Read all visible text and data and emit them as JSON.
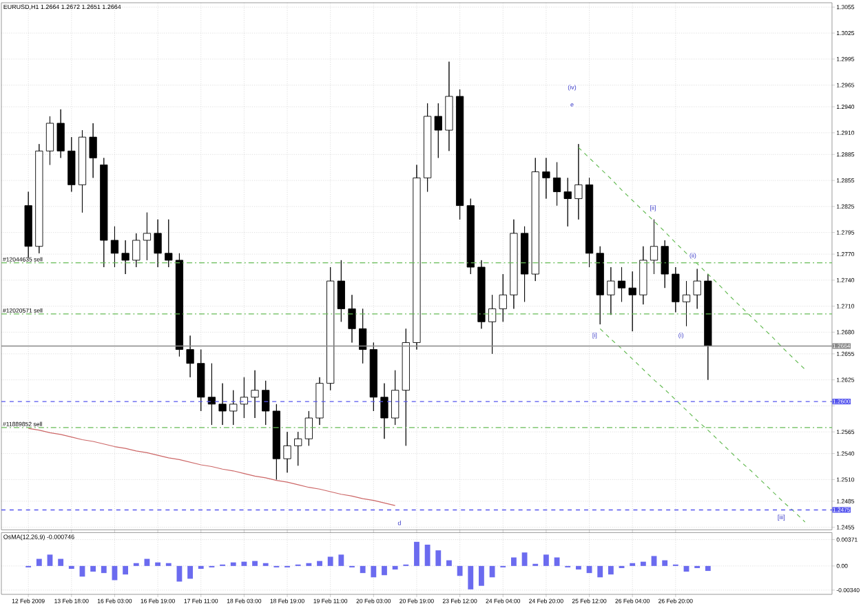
{
  "chart_data": [
    {
      "type": "candlestick",
      "title": "EURUSD,H1  1.2664 1.2672 1.2651 1.2664",
      "color": "#000000",
      "categories": [
        null,
        null,
        null,
        null,
        null,
        null,
        null,
        null,
        null,
        null,
        null,
        null,
        null,
        null,
        null,
        null,
        null,
        null,
        null,
        null,
        null,
        null,
        null,
        null,
        null,
        null,
        null,
        null,
        null,
        null,
        null,
        null,
        null,
        null,
        null,
        null,
        null,
        null,
        null,
        null,
        null,
        null,
        null,
        null,
        null,
        null,
        null,
        null,
        null,
        null,
        null,
        null,
        null,
        null,
        null,
        null,
        null,
        null,
        null,
        null,
        null,
        null,
        null,
        null,
        null,
        null,
        null,
        null,
        null,
        null,
        null,
        null,
        null,
        null,
        null
      ],
      "ohlc": [
        [
          1.2826,
          1.2842,
          1.2766,
          1.2779
        ],
        [
          1.2779,
          1.2897,
          1.2771,
          1.2889
        ],
        [
          1.2889,
          1.2929,
          1.2873,
          1.2921
        ],
        [
          1.2921,
          1.2937,
          1.2881,
          1.2889
        ],
        [
          1.2889,
          1.2905,
          1.2842,
          1.285
        ],
        [
          1.285,
          1.2913,
          1.2818,
          1.2905
        ],
        [
          1.2905,
          1.2921,
          1.2858,
          1.2881
        ],
        [
          1.2873,
          1.2881,
          1.2755,
          1.2786
        ],
        [
          1.2786,
          1.2802,
          1.2755,
          1.2771
        ],
        [
          1.2771,
          1.2786,
          1.2747,
          1.2763
        ],
        [
          1.2763,
          1.2794,
          1.2755,
          1.2786
        ],
        [
          1.2786,
          1.2818,
          1.2763,
          1.2794
        ],
        [
          1.2794,
          1.281,
          1.2755,
          1.2771
        ],
        [
          1.2771,
          1.281,
          1.2755,
          1.2763
        ],
        [
          1.2763,
          1.2771,
          1.2652,
          1.266
        ],
        [
          1.266,
          1.2676,
          1.2628,
          1.2644
        ],
        [
          1.2644,
          1.266,
          1.2589,
          1.2605
        ],
        [
          1.2605,
          1.2644,
          1.2573,
          1.2597
        ],
        [
          1.2597,
          1.2621,
          1.2573,
          1.2589
        ],
        [
          1.2589,
          1.2613,
          1.2573,
          1.2597
        ],
        [
          1.2597,
          1.2628,
          1.2581,
          1.2605
        ],
        [
          1.2605,
          1.2636,
          1.2581,
          1.2613
        ],
        [
          1.2613,
          1.2624,
          1.2573,
          1.2589
        ],
        [
          1.2589,
          1.2597,
          1.251,
          1.2534
        ],
        [
          1.2534,
          1.2565,
          1.2518,
          1.2549
        ],
        [
          1.2549,
          1.2565,
          1.2526,
          1.2557
        ],
        [
          1.2557,
          1.2589,
          1.2549,
          1.2581
        ],
        [
          1.2581,
          1.2628,
          1.2573,
          1.2621
        ],
        [
          1.2621,
          1.2755,
          1.2613,
          1.2739
        ],
        [
          1.2739,
          1.2763,
          1.2692,
          1.2707
        ],
        [
          1.2707,
          1.2723,
          1.2668,
          1.2684
        ],
        [
          1.2684,
          1.2707,
          1.2644,
          1.266
        ],
        [
          1.266,
          1.2668,
          1.2589,
          1.2605
        ],
        [
          1.2605,
          1.2621,
          1.2557,
          1.2581
        ],
        [
          1.2581,
          1.2636,
          1.2573,
          1.2613
        ],
        [
          1.2613,
          1.2684,
          1.2549,
          1.2668
        ],
        [
          1.2668,
          1.2873,
          1.266,
          1.2858
        ],
        [
          1.2858,
          1.2944,
          1.2842,
          1.2929
        ],
        [
          1.2929,
          1.2944,
          1.2881,
          1.2913
        ],
        [
          1.2913,
          1.2992,
          1.2889,
          1.2952
        ],
        [
          1.2952,
          1.296,
          1.281,
          1.2826
        ],
        [
          1.2826,
          1.2834,
          1.2747,
          1.2755
        ],
        [
          1.2755,
          1.2763,
          1.2684,
          1.2692
        ],
        [
          1.2692,
          1.2723,
          1.2655,
          1.2707
        ],
        [
          1.2707,
          1.2747,
          1.2692,
          1.2723
        ],
        [
          1.2723,
          1.281,
          1.2707,
          1.2794
        ],
        [
          1.2794,
          1.2802,
          1.2715,
          1.2747
        ],
        [
          1.2747,
          1.2881,
          1.2739,
          1.2865
        ],
        [
          1.2865,
          1.2881,
          1.2834,
          1.2858
        ],
        [
          1.2858,
          1.2876,
          1.2826,
          1.2842
        ],
        [
          1.2842,
          1.2858,
          1.2802,
          1.2834
        ],
        [
          1.2834,
          1.2897,
          1.281,
          1.285
        ],
        [
          1.285,
          1.2858,
          1.2755,
          1.2771
        ],
        [
          1.2771,
          1.2779,
          1.2689,
          1.2723
        ],
        [
          1.2723,
          1.2755,
          1.27,
          1.2739
        ],
        [
          1.2739,
          1.2755,
          1.2715,
          1.2731
        ],
        [
          1.2731,
          1.275,
          1.2681,
          1.2723
        ],
        [
          1.2723,
          1.2779,
          1.2712,
          1.2763
        ],
        [
          1.2763,
          1.281,
          1.2747,
          1.2779
        ],
        [
          1.2779,
          1.2786,
          1.2731,
          1.2747
        ],
        [
          1.2747,
          1.2755,
          1.2703,
          1.2715
        ],
        [
          1.2715,
          1.2739,
          1.2687,
          1.2723
        ],
        [
          1.2723,
          1.2753,
          1.2707,
          1.2739
        ],
        [
          1.2739,
          1.2747,
          1.2625,
          1.2664
        ],
        null,
        null,
        null,
        null,
        null,
        null,
        null,
        null,
        null,
        null,
        null
      ],
      "series": [
        {
          "type": "line",
          "color": "#cc6666",
          "line_style": "solid",
          "values": [
            1.2569,
            1.2567,
            1.2564,
            1.2562,
            1.2559,
            1.2556,
            1.2554,
            1.2551,
            1.2548,
            1.2546,
            1.2543,
            1.2541,
            1.2538,
            1.2535,
            1.2533,
            1.253,
            1.2527,
            1.2525,
            1.2522,
            1.252,
            1.2517,
            1.2514,
            1.2512,
            1.2509,
            1.2507,
            1.2504,
            1.2501,
            1.2499,
            1.2496,
            1.2493,
            1.2491,
            1.2488,
            1.2486,
            1.2483,
            1.248,
            null,
            null,
            null,
            null,
            null,
            null,
            null,
            null,
            null,
            null,
            null,
            null,
            null,
            null,
            null,
            null,
            null,
            null,
            null,
            null,
            null,
            null,
            null,
            null,
            null,
            null,
            null,
            null,
            null,
            null,
            null,
            null,
            null,
            null,
            null,
            null,
            null,
            null,
            null,
            null
          ]
        },
        {
          "type": "line",
          "color": "#66bb55",
          "line_style": "dashed",
          "values": [
            null,
            null,
            null,
            null,
            null,
            null,
            null,
            null,
            null,
            null,
            null,
            null,
            null,
            null,
            null,
            null,
            null,
            null,
            null,
            null,
            null,
            null,
            null,
            null,
            null,
            null,
            null,
            null,
            null,
            null,
            null,
            null,
            null,
            null,
            null,
            null,
            null,
            null,
            null,
            null,
            null,
            null,
            null,
            null,
            null,
            null,
            null,
            null,
            null,
            null,
            null,
            1.2893,
            1.2881,
            1.2869,
            1.2857,
            1.2844,
            1.2832,
            1.282,
            1.2808,
            1.2796,
            1.2783,
            1.2771,
            1.2759,
            1.2747,
            1.2735,
            1.2722,
            1.271,
            1.2698,
            1.2686,
            1.2674,
            1.2661,
            1.2649,
            1.2637,
            null,
            null
          ]
        },
        {
          "type": "line",
          "color": "#66bb55",
          "line_style": "dashed",
          "values": [
            null,
            null,
            null,
            null,
            null,
            null,
            null,
            null,
            null,
            null,
            null,
            null,
            null,
            null,
            null,
            null,
            null,
            null,
            null,
            null,
            null,
            null,
            null,
            null,
            null,
            null,
            null,
            null,
            null,
            null,
            null,
            null,
            null,
            null,
            null,
            null,
            null,
            null,
            null,
            null,
            null,
            null,
            null,
            null,
            null,
            null,
            null,
            null,
            null,
            null,
            null,
            null,
            null,
            1.2684,
            1.2672,
            1.2661,
            1.2649,
            1.2637,
            1.2625,
            1.2614,
            1.2602,
            1.259,
            1.2578,
            1.2567,
            1.2555,
            1.2543,
            1.2531,
            1.252,
            1.2508,
            1.2496,
            1.2484,
            1.2473,
            1.2461,
            null,
            null
          ]
        }
      ],
      "ref_lines": [
        {
          "axis": "y",
          "value": 1.276,
          "label": "#12044635 sell",
          "color": "#66bb55",
          "line_style": "dashdot"
        },
        {
          "axis": "y",
          "value": 1.2701,
          "label": "#12020571 sell",
          "color": "#66bb55",
          "line_style": "dashdot"
        },
        {
          "axis": "y",
          "value": 1.257,
          "label": "#11889852 sell",
          "color": "#66bb55",
          "line_style": "dashdot"
        },
        {
          "axis": "y",
          "value": 1.26,
          "label": "1.2600",
          "color": "#5555ee",
          "line_style": "dashed"
        },
        {
          "axis": "y",
          "value": 1.2475,
          "label": "1.2475",
          "color": "#5555ee",
          "line_style": "dashed"
        },
        {
          "axis": "y",
          "value": 1.2664,
          "label": "1.2664",
          "color": "#888888",
          "line_style": "solid"
        }
      ],
      "annotations": [
        "(iv)",
        "e",
        "[i]",
        "[ii]",
        "(i)",
        "(ii)",
        "[iii]",
        "d"
      ],
      "ylim": [
        1.2452,
        1.306
      ],
      "yticks": [
        {
          "value": 1.3055,
          "label": "1.3055"
        },
        {
          "value": 1.3025,
          "label": "1.3025"
        },
        {
          "value": 1.2995,
          "label": "1.2995"
        },
        {
          "value": 1.2965,
          "label": "1.2965"
        },
        {
          "value": 1.294,
          "label": "1.2940"
        },
        {
          "value": 1.291,
          "label": "1.2910"
        },
        {
          "value": 1.2885,
          "label": "1.2885"
        },
        {
          "value": 1.2855,
          "label": "1.2855"
        },
        {
          "value": 1.2825,
          "label": "1.2825"
        },
        {
          "value": 1.2795,
          "label": "1.2795"
        },
        {
          "value": 1.277,
          "label": "1.2770"
        },
        {
          "value": 1.274,
          "label": "1.2740"
        },
        {
          "value": 1.271,
          "label": "1.2710"
        },
        {
          "value": 1.268,
          "label": "1.2680"
        },
        {
          "value": 1.2655,
          "label": "1.2655"
        },
        {
          "value": 1.2625,
          "label": "1.2625"
        },
        {
          "value": 1.2595,
          "label": null
        },
        {
          "value": 1.2565,
          "label": "1.2565"
        },
        {
          "value": 1.254,
          "label": "1.2540"
        },
        {
          "value": 1.251,
          "label": "1.2510"
        },
        {
          "value": 1.2485,
          "label": "1.2485"
        },
        {
          "value": 1.2455,
          "label": "1.2455"
        }
      ],
      "tick_labels": "y",
      "grid": true
    },
    {
      "type": "bar",
      "title": "OsMA(12,26,9) -0.000746",
      "color": "#6b6bef",
      "categories": [
        "12 Feb 2009",
        null,
        null,
        null,
        "13 Feb 18:00",
        null,
        null,
        null,
        "16 Feb 03:00",
        null,
        null,
        null,
        "16 Feb 19:00",
        null,
        null,
        null,
        "17 Feb 11:00",
        null,
        null,
        null,
        "18 Feb 03:00",
        null,
        null,
        null,
        "18 Feb 19:00",
        null,
        null,
        null,
        "19 Feb 11:00",
        null,
        null,
        null,
        "20 Feb 03:00",
        null,
        null,
        null,
        "20 Feb 19:00",
        null,
        null,
        null,
        "23 Feb 12:00",
        null,
        null,
        null,
        "24 Feb 04:00",
        null,
        null,
        null,
        "24 Feb 20:00",
        null,
        null,
        null,
        "25 Feb 12:00",
        null,
        null,
        null,
        "26 Feb 04:00",
        null,
        null,
        null,
        "26 Feb 20:00",
        null,
        null,
        null,
        null,
        null,
        null,
        null,
        null,
        null,
        null,
        null,
        null,
        null,
        null
      ],
      "values": [
        -0.0002,
        0.001,
        0.0016,
        0.001,
        -0.0004,
        -0.0015,
        -0.0008,
        -0.001,
        -0.002,
        -0.0012,
        0.0004,
        0.001,
        0.0005,
        0.0004,
        -0.0022,
        -0.0018,
        -0.0004,
        -0.0002,
        0.0002,
        0.0005,
        0.0006,
        0.0007,
        0.0004,
        -0.0002,
        -0.0002,
        0.0002,
        0.0004,
        0.0007,
        0.0013,
        0.0016,
        -0.0002,
        -0.001,
        -0.0016,
        -0.0013,
        -0.0005,
        0.0002,
        0.0034,
        0.003,
        0.0022,
        0.0008,
        -0.0014,
        -0.0033,
        -0.0028,
        -0.0016,
        -0.0002,
        0.0012,
        0.0019,
        0.0003,
        0.0016,
        0.0012,
        -0.0002,
        -0.0005,
        -0.001,
        -0.0016,
        -0.0012,
        -0.0003,
        0.0004,
        0.0006,
        0.0014,
        0.0008,
        0.0002,
        -0.0008,
        -0.0003,
        -0.0007,
        null,
        null,
        null,
        null,
        null,
        null,
        null,
        null,
        null,
        null,
        null
      ],
      "ylim": [
        -0.004,
        0.0047
      ],
      "yticks": [
        {
          "value": 0.00371,
          "label": "0.00371"
        },
        {
          "value": 0,
          "label": "0.00"
        },
        {
          "value": -0.0034,
          "label": "-0.00340"
        }
      ],
      "grid": true
    }
  ]
}
